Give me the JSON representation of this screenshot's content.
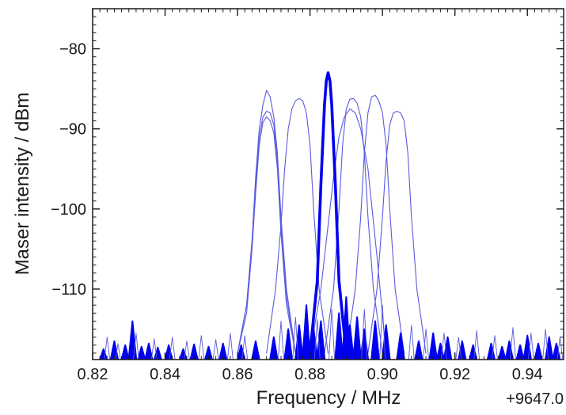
{
  "chart_data": {
    "type": "line",
    "title": "",
    "xlabel": "Frequency / MHz",
    "ylabel": "Maser intensity / dBm",
    "x_offset_label": "+9647.0",
    "x_offset": 9647.0,
    "xlim": [
      0.82,
      0.95
    ],
    "ylim": [
      -118.8,
      -75
    ],
    "x_ticks": [
      0.82,
      0.84,
      0.86,
      0.88,
      0.9,
      0.92,
      0.94
    ],
    "x_tick_labels": [
      "0.82",
      "0.84",
      "0.86",
      "0.88",
      "0.90",
      "0.92",
      "0.94"
    ],
    "y_ticks": [
      -80,
      -90,
      -100,
      -110
    ],
    "y_tick_labels": [
      "−80",
      "−90",
      "−100",
      "−110"
    ],
    "grid": false,
    "noise_floor": -118,
    "colors": {
      "highlight": "#0000ee",
      "thin": "#5a5adf",
      "axis": "#1a1a1a"
    },
    "series": [
      {
        "style": "thin",
        "x": [
          0.86,
          0.8625,
          0.864,
          0.865,
          0.866,
          0.867,
          0.868,
          0.869,
          0.87,
          0.871,
          0.872,
          0.8735,
          0.876
        ],
        "y": [
          -118.0,
          -112.0,
          -104.0,
          -96.0,
          -90.0,
          -87.0,
          -85.2,
          -86.0,
          -88.5,
          -93.0,
          -101.0,
          -110.0,
          -118.0
        ]
      },
      {
        "style": "thin",
        "x": [
          0.86,
          0.8625,
          0.864,
          0.865,
          0.866,
          0.867,
          0.868,
          0.869,
          0.87,
          0.871,
          0.872,
          0.8735,
          0.876
        ],
        "y": [
          -118.0,
          -112.0,
          -104.0,
          -97.0,
          -91.0,
          -88.5,
          -87.8,
          -88.0,
          -89.5,
          -94.0,
          -102.0,
          -111.0,
          -118.0
        ]
      },
      {
        "style": "thin",
        "x": [
          0.86,
          0.8625,
          0.864,
          0.865,
          0.866,
          0.867,
          0.868,
          0.869,
          0.87,
          0.871,
          0.872,
          0.8735,
          0.876
        ],
        "y": [
          -118.0,
          -113.0,
          -105.0,
          -98.0,
          -92.0,
          -89.2,
          -88.5,
          -89.0,
          -90.5,
          -95.0,
          -103.0,
          -112.0,
          -118.0
        ]
      },
      {
        "style": "thin",
        "x": [
          0.868,
          0.8705,
          0.872,
          0.873,
          0.874,
          0.875,
          0.876,
          0.877,
          0.878,
          0.879,
          0.88,
          0.881,
          0.8825,
          0.885
        ],
        "y": [
          -118.0,
          -110.0,
          -102.0,
          -95.0,
          -90.0,
          -87.5,
          -86.5,
          -86.2,
          -86.5,
          -88.0,
          -92.0,
          -100.0,
          -110.0,
          -118.0
        ]
      },
      {
        "style": "thin",
        "x": [
          0.884,
          0.8865,
          0.888,
          0.889,
          0.89,
          0.891,
          0.892,
          0.893,
          0.894,
          0.895,
          0.896,
          0.8975,
          0.9
        ],
        "y": [
          -118.0,
          -110.0,
          -100.0,
          -92.0,
          -87.5,
          -86.3,
          -86.2,
          -86.8,
          -88.5,
          -93.0,
          -101.0,
          -110.0,
          -118.0
        ]
      },
      {
        "style": "thin",
        "x": [
          0.88,
          0.883,
          0.885,
          0.8865,
          0.888,
          0.8895,
          0.891,
          0.8925,
          0.894,
          0.896,
          0.8985,
          0.901
        ],
        "y": [
          -118.0,
          -110.0,
          -102.0,
          -96.0,
          -91.0,
          -88.5,
          -87.5,
          -88.0,
          -90.0,
          -95.0,
          -106.0,
          -118.0
        ]
      },
      {
        "style": "thin",
        "x": [
          0.89,
          0.8925,
          0.894,
          0.895,
          0.896,
          0.897,
          0.898,
          0.899,
          0.9,
          0.901,
          0.902,
          0.9035,
          0.906
        ],
        "y": [
          -118.0,
          -110.0,
          -101.0,
          -93.0,
          -88.0,
          -86.0,
          -85.8,
          -86.5,
          -88.0,
          -92.0,
          -100.0,
          -110.0,
          -118.0
        ]
      },
      {
        "style": "thin",
        "x": [
          0.896,
          0.8985,
          0.9,
          0.901,
          0.902,
          0.903,
          0.904,
          0.905,
          0.906,
          0.907,
          0.908,
          0.9095,
          0.912
        ],
        "y": [
          -118.0,
          -110.0,
          -101.0,
          -94.0,
          -89.5,
          -88.0,
          -87.8,
          -88.0,
          -89.0,
          -93.0,
          -101.0,
          -110.0,
          -118.0
        ]
      },
      {
        "style": "bold",
        "x": [
          0.88,
          0.882,
          0.883,
          0.884,
          0.8845,
          0.885,
          0.8855,
          0.886,
          0.887,
          0.888,
          0.89
        ],
        "y": [
          -118.0,
          -109.0,
          -97.0,
          -87.0,
          -84.0,
          -83.0,
          -84.0,
          -87.0,
          -97.0,
          -109.0,
          -118.0
        ]
      },
      {
        "style": "bold-spikes",
        "x": [
          0.823,
          0.826,
          0.829,
          0.831,
          0.8335,
          0.8355,
          0.838,
          0.841,
          0.845,
          0.848,
          0.852,
          0.856,
          0.861,
          0.865,
          0.87,
          0.874,
          0.877,
          0.879,
          0.881,
          0.883,
          0.888,
          0.89,
          0.891,
          0.893,
          0.895,
          0.898,
          0.901,
          0.905,
          0.91,
          0.914,
          0.916,
          0.918,
          0.922,
          0.925,
          0.93,
          0.933,
          0.935,
          0.938,
          0.94,
          0.943,
          0.946,
          0.948
        ],
        "y": [
          -117.5,
          -116.5,
          -117.0,
          -114.0,
          -117.2,
          -116.8,
          -117.3,
          -117.0,
          -117.5,
          -116.9,
          -117.2,
          -116.8,
          -117.0,
          -116.5,
          -116.0,
          -115.0,
          -114.5,
          -112.0,
          -115.0,
          -114.0,
          -113.0,
          -111.0,
          -114.5,
          -113.5,
          -115.0,
          -114.0,
          -114.5,
          -115.5,
          -116.5,
          -115.5,
          -116.8,
          -116.0,
          -116.5,
          -117.0,
          -116.8,
          -117.2,
          -116.5,
          -117.0,
          -115.8,
          -116.8,
          -116.0,
          -116.8
        ]
      },
      {
        "style": "thin-noise",
        "x": [
          0.824,
          0.827,
          0.832,
          0.837,
          0.842,
          0.846,
          0.85,
          0.854,
          0.858,
          0.862,
          0.872,
          0.876,
          0.882,
          0.886,
          0.895,
          0.9,
          0.908,
          0.912,
          0.917,
          0.921,
          0.926,
          0.931,
          0.936,
          0.941,
          0.945,
          0.949
        ],
        "y": [
          -116.0,
          -116.8,
          -115.5,
          -116.2,
          -116.0,
          -116.5,
          -115.8,
          -116.3,
          -115.5,
          -115.8,
          -114.0,
          -113.5,
          -113.8,
          -112.5,
          -112.5,
          -112.0,
          -114.5,
          -115.0,
          -115.5,
          -116.0,
          -115.2,
          -115.8,
          -114.8,
          -115.5,
          -115.0,
          -116.0
        ]
      }
    ]
  }
}
